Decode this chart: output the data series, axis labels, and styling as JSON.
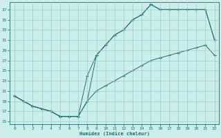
{
  "xlabel": "Humidex (Indice chaleur)",
  "background_color": "#cceee8",
  "grid_color": "#99cccc",
  "line_color": "#1a6b6b",
  "xticks": [
    0,
    1,
    2,
    3,
    4,
    5,
    6,
    7,
    8,
    9,
    10,
    11,
    12,
    13,
    14,
    15,
    16,
    17,
    18,
    19,
    20,
    21,
    22
  ],
  "yticks": [
    15,
    17,
    19,
    21,
    23,
    25,
    27,
    29,
    31,
    33,
    35,
    37
  ],
  "xlim": [
    -0.5,
    22.5
  ],
  "ylim": [
    14.5,
    38.5
  ],
  "line1_x": [
    0,
    1,
    2,
    3,
    4,
    5,
    6,
    7,
    8,
    9,
    10,
    11,
    12,
    13,
    14,
    15,
    16,
    17,
    18,
    19,
    20,
    21,
    22
  ],
  "line1_y": [
    20,
    19,
    18,
    17.5,
    17,
    16,
    16,
    16,
    19,
    28,
    30,
    32,
    33,
    35,
    36,
    38,
    37,
    37,
    37,
    37,
    37,
    37,
    31
  ],
  "line2_x": [
    0,
    1,
    2,
    3,
    4,
    5,
    6,
    7,
    8,
    9,
    10,
    11,
    12,
    13,
    14,
    15,
    16,
    17,
    18,
    19,
    20,
    21,
    22
  ],
  "line2_y": [
    20,
    19,
    18,
    17.5,
    17,
    16,
    16,
    16,
    24,
    28,
    30,
    32,
    33,
    35,
    36,
    38,
    37,
    37,
    37,
    37,
    37,
    37,
    31
  ],
  "line3_x": [
    0,
    1,
    2,
    3,
    4,
    5,
    6,
    7,
    8,
    9,
    10,
    11,
    12,
    13,
    14,
    15,
    16,
    17,
    18,
    19,
    20,
    21,
    22
  ],
  "line3_y": [
    20,
    19,
    18,
    17.5,
    17,
    16,
    16,
    16,
    19,
    21,
    22,
    23,
    24,
    25,
    26,
    27,
    27.5,
    28,
    28.5,
    29,
    29.5,
    30,
    28
  ]
}
